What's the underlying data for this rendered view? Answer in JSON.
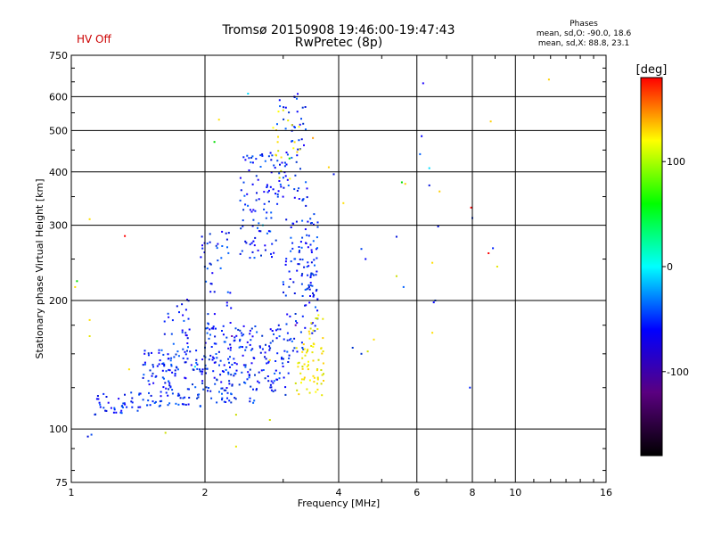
{
  "header": {
    "title_line1": "Tromsø 20150908 19:46:00-19:47:43",
    "title_line2": "RwPretec (8p)",
    "hv_status": "HV Off",
    "hv_color": "#cc0000"
  },
  "phases": {
    "heading": "Phases",
    "stat_o": "mean, sd,O: -90.0, 18.6",
    "stat_x": "mean, sd,X:  88.8, 23.1"
  },
  "chart_data": {
    "type": "scatter",
    "xlabel": "Frequency [MHz]",
    "ylabel": "Stationary phase Virtual Height [km]",
    "x_scale": "log",
    "y_scale": "log",
    "xlim": [
      1,
      16
    ],
    "ylim": [
      75,
      750
    ],
    "x_ticks": [
      1,
      2,
      4,
      6,
      8,
      10,
      16
    ],
    "y_ticks": [
      75,
      100,
      200,
      300,
      400,
      500,
      600,
      750
    ],
    "grid": true,
    "colorbar": {
      "label": "[deg]",
      "range": [
        -180,
        180
      ],
      "ticks": [
        -100,
        0,
        100
      ],
      "colors": [
        "#000000",
        "#5a0080",
        "#0000ff",
        "#00ffff",
        "#00ff00",
        "#ffff00",
        "#ff0000"
      ]
    },
    "o_mode": {
      "name": "O",
      "color_bucket": "blue",
      "regions": [
        {
          "x": [
            1.12,
            1.45
          ],
          "y": [
            108,
            122
          ],
          "n": 40
        },
        {
          "x": [
            1.45,
            2.0
          ],
          "y": [
            112,
            155
          ],
          "n": 140
        },
        {
          "x": [
            1.6,
            1.85
          ],
          "y": [
            155,
            205
          ],
          "n": 25
        },
        {
          "x": [
            2.0,
            2.6
          ],
          "y": [
            115,
            175
          ],
          "n": 150
        },
        {
          "x": [
            1.95,
            2.3
          ],
          "y": [
            170,
            290
          ],
          "n": 45
        },
        {
          "x": [
            2.4,
            2.9
          ],
          "y": [
            250,
            450
          ],
          "n": 90
        },
        {
          "x": [
            2.6,
            3.1
          ],
          "y": [
            120,
            175
          ],
          "n": 70
        },
        {
          "x": [
            3.0,
            3.6
          ],
          "y": [
            150,
            310
          ],
          "n": 100
        },
        {
          "x": [
            2.9,
            3.4
          ],
          "y": [
            330,
            620
          ],
          "n": 70
        },
        {
          "x": [
            3.4,
            3.6
          ],
          "y": [
            200,
            320
          ],
          "n": 25
        }
      ],
      "points": [
        [
          1.09,
          96
        ],
        [
          1.11,
          97
        ],
        [
          1.25,
          112
        ],
        [
          1.3,
          113
        ],
        [
          6.2,
          645
        ],
        [
          6.55,
          198
        ],
        [
          6.6,
          200
        ],
        [
          7.9,
          125
        ],
        [
          8.0,
          312
        ],
        [
          8.9,
          265
        ],
        [
          6.15,
          485
        ],
        [
          6.1,
          440
        ],
        [
          6.4,
          372
        ],
        [
          5.4,
          282
        ],
        [
          4.5,
          264
        ],
        [
          3.9,
          395
        ],
        [
          4.6,
          250
        ],
        [
          5.6,
          215
        ],
        [
          6.7,
          298
        ],
        [
          4.3,
          155
        ],
        [
          4.5,
          150
        ]
      ]
    },
    "x_mode": {
      "name": "X",
      "color_bucket": "yellow",
      "regions": [
        {
          "x": [
            3.2,
            3.7
          ],
          "y": [
            120,
            160
          ],
          "n": 55
        },
        {
          "x": [
            3.4,
            3.7
          ],
          "y": [
            155,
            185
          ],
          "n": 15
        },
        {
          "x": [
            2.8,
            3.3
          ],
          "y": [
            380,
            560
          ],
          "n": 20
        }
      ],
      "points": [
        [
          1.02,
          215
        ],
        [
          1.1,
          310
        ],
        [
          1.1,
          180
        ],
        [
          1.1,
          165
        ],
        [
          1.35,
          138
        ],
        [
          1.63,
          98
        ],
        [
          2.15,
          530
        ],
        [
          2.35,
          91
        ],
        [
          2.35,
          108
        ],
        [
          2.8,
          105
        ],
        [
          2.8,
          145
        ],
        [
          3.8,
          410
        ],
        [
          4.1,
          338
        ],
        [
          5.4,
          228
        ],
        [
          5.65,
          375
        ],
        [
          6.5,
          168
        ],
        [
          6.5,
          245
        ],
        [
          6.75,
          360
        ],
        [
          8.8,
          525
        ],
        [
          9.1,
          240
        ],
        [
          11.9,
          658
        ],
        [
          4.65,
          152
        ],
        [
          4.8,
          162
        ]
      ]
    },
    "extra_points": [
      {
        "x": 1.32,
        "y": 283,
        "bucket": "red"
      },
      {
        "x": 3.5,
        "y": 480,
        "bucket": "orange"
      },
      {
        "x": 2.1,
        "y": 470,
        "bucket": "green"
      },
      {
        "x": 1.03,
        "y": 222,
        "bucket": "green"
      },
      {
        "x": 8.7,
        "y": 258,
        "bucket": "red"
      },
      {
        "x": 7.95,
        "y": 330,
        "bucket": "red"
      },
      {
        "x": 5.55,
        "y": 378,
        "bucket": "green"
      },
      {
        "x": 6.4,
        "y": 408,
        "bucket": "cyan"
      },
      {
        "x": 2.5,
        "y": 610,
        "bucket": "cyan"
      },
      {
        "x": 3.2,
        "y": 175,
        "bucket": "purple"
      },
      {
        "x": 2.3,
        "y": 165,
        "bucket": "purple"
      },
      {
        "x": 1.9,
        "y": 140,
        "bucket": "cyan"
      },
      {
        "x": 2.7,
        "y": 300,
        "bucket": "cyan"
      },
      {
        "x": 3.1,
        "y": 430,
        "bucket": "green"
      }
    ],
    "bucket_colors": {
      "blue": [
        "#0000ff",
        "#0022ff",
        "#0044ee",
        "#0033cc",
        "#1a00ff",
        "#0060ff",
        "#0010dd"
      ],
      "yellow": [
        "#ffff00",
        "#e6e600",
        "#ffe000",
        "#ccdd00",
        "#ffd000"
      ],
      "red": [
        "#ff0000"
      ],
      "orange": [
        "#ff9900"
      ],
      "green": [
        "#00dd00"
      ],
      "cyan": [
        "#00ddff"
      ],
      "purple": [
        "#6600aa"
      ]
    }
  }
}
